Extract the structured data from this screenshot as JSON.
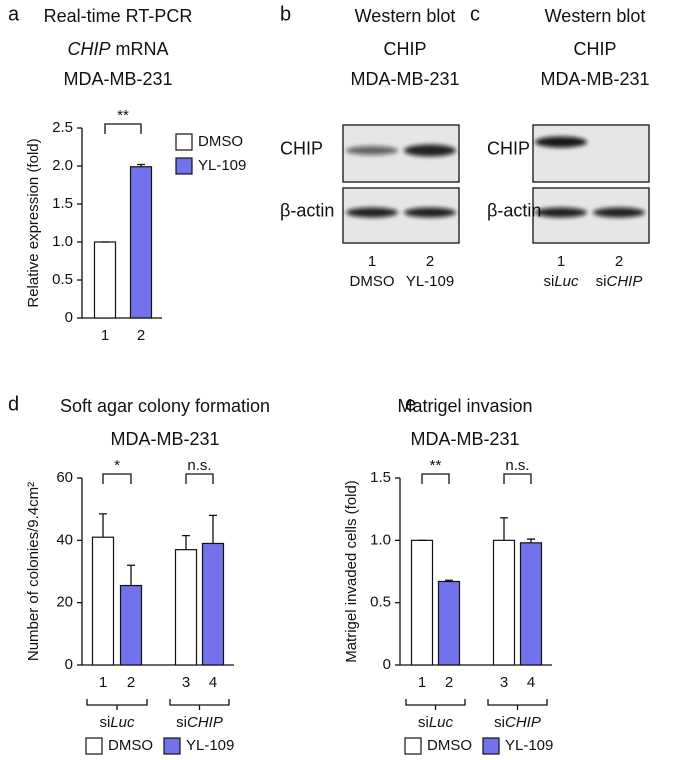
{
  "chart_data": [
    {
      "type": "bar",
      "letter": "a",
      "title": "Real-time RT-PCR",
      "subtitle": [
        "CHIP",
        " mRNA"
      ],
      "subtitle_italic": [
        true,
        false
      ],
      "cell": "MDA-MB-231",
      "ylabel": "Relative expression (fold)",
      "categories": [
        "1",
        "2"
      ],
      "values": [
        1,
        1.99
      ],
      "errors": [
        0,
        0.03
      ],
      "bar_series": [
        0,
        1
      ],
      "series": [
        {
          "name": "DMSO",
          "color": "#ffffff"
        },
        {
          "name": "YL-109",
          "color": "#7272ea"
        }
      ],
      "ylim": [
        0,
        2.5
      ],
      "yticks": [
        0,
        0.5,
        {
          "value": 1,
          "label": "1.0"
        },
        1.5,
        {
          "value": 2,
          "label": "2.0"
        },
        2.5
      ],
      "significance": [
        {
          "bars": [
            0,
            1
          ],
          "label": "**"
        }
      ],
      "legend": "right"
    },
    {
      "type": "bar",
      "letter": "d",
      "title": "Soft agar colony formation",
      "cell": "MDA-MB-231",
      "ylabel": "Number of colonies/9.4cm²",
      "categories": [
        "1",
        "2",
        "3",
        "4"
      ],
      "values": [
        41,
        25.5,
        37,
        39
      ],
      "errors": [
        7.5,
        6.5,
        4.5,
        9
      ],
      "bar_series": [
        0,
        1,
        0,
        1
      ],
      "series": [
        {
          "name": "DMSO",
          "color": "#ffffff"
        },
        {
          "name": "YL-109",
          "color": "#7272ea"
        }
      ],
      "ylim": [
        0,
        60
      ],
      "yticks": [
        0,
        20,
        40,
        60
      ],
      "significance": [
        {
          "bars": [
            0,
            1
          ],
          "label": "*"
        },
        {
          "bars": [
            2,
            3
          ],
          "label": "n.s."
        }
      ],
      "groups": [
        {
          "prefix": "si",
          "gene": "Luc"
        },
        {
          "prefix": "si",
          "gene": "CHIP"
        }
      ],
      "legend": "bottom"
    },
    {
      "type": "bar",
      "letter": "e",
      "title": "Matrigel invasion",
      "cell": "MDA-MB-231",
      "ylabel": "Matrigel invaded cells (fold)",
      "categories": [
        "1",
        "2",
        "3",
        "4"
      ],
      "values": [
        1,
        0.67,
        1,
        0.98
      ],
      "errors": [
        0,
        0.01,
        0.18,
        0.03
      ],
      "bar_series": [
        0,
        1,
        0,
        1
      ],
      "series": [
        {
          "name": "DMSO",
          "color": "#ffffff"
        },
        {
          "name": "YL-109",
          "color": "#7272ea"
        }
      ],
      "ylim": [
        0,
        1.5
      ],
      "yticks": [
        0,
        0.5,
        {
          "value": 1,
          "label": "1.0"
        },
        1.5
      ],
      "significance": [
        {
          "bars": [
            0,
            1
          ],
          "label": "**"
        },
        {
          "bars": [
            2,
            3
          ],
          "label": "n.s."
        }
      ],
      "groups": [
        {
          "prefix": "si",
          "gene": "Luc"
        },
        {
          "prefix": "si",
          "gene": "CHIP"
        }
      ],
      "legend": "bottom"
    }
  ],
  "blots": [
    {
      "letter": "b",
      "title": "Western blot",
      "target": "CHIP",
      "cell": "MDA-MB-231",
      "rows": [
        "CHIP",
        "β-actin"
      ],
      "lanes": [
        "1",
        "2"
      ],
      "lane_labels": [
        {
          "text": "DMSO"
        },
        {
          "text": "YL-109"
        }
      ]
    },
    {
      "letter": "c",
      "title": "Western blot",
      "target": "CHIP",
      "cell": "MDA-MB-231",
      "rows": [
        "CHIP",
        "β-actin"
      ],
      "lanes": [
        "1",
        "2"
      ],
      "lane_labels": [
        {
          "prefix": "si",
          "gene": "Luc"
        },
        {
          "prefix": "si",
          "gene": "CHIP"
        }
      ]
    }
  ]
}
